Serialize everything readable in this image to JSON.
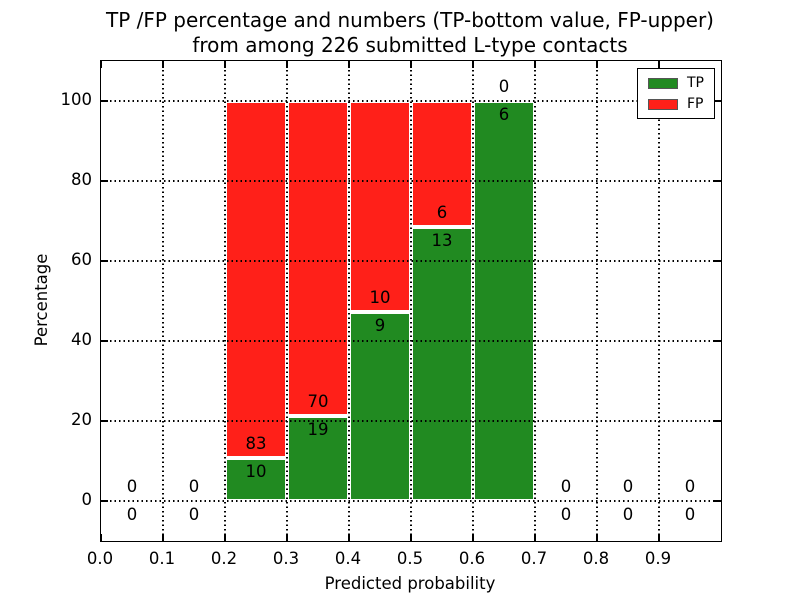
{
  "title": {
    "line1": "TP /FP percentage and numbers (TP-bottom value, FP-upper)",
    "line2": "from among 226 submitted L-type contacts"
  },
  "chart_data": {
    "type": "bar",
    "subtype": "stacked-percentage-histogram",
    "title": "TP /FP percentage and numbers (TP-bottom value, FP-upper) from among 226 submitted L-type contacts",
    "xlabel": "Predicted probability",
    "ylabel": "Percentage",
    "xlim": [
      0.0,
      1.0
    ],
    "ylim": [
      -10,
      110
    ],
    "x_ticks": [
      0.0,
      0.1,
      0.2,
      0.3,
      0.4,
      0.5,
      0.6,
      0.7,
      0.8,
      0.9
    ],
    "y_ticks": [
      0,
      20,
      40,
      60,
      80,
      100
    ],
    "grid": "dotted black, drawn over bars",
    "total_contacts": 226,
    "legend": {
      "position": "upper right",
      "entries": [
        {
          "id": "tp",
          "label": "TP",
          "color": "#218a21"
        },
        {
          "id": "fp",
          "label": "FP",
          "color": "#ff2019"
        }
      ]
    },
    "bins": [
      {
        "x_start": 0.0,
        "x_end": 0.1,
        "tp_count": 0,
        "fp_count": 0,
        "tp_pct": 0,
        "fp_pct": 0
      },
      {
        "x_start": 0.1,
        "x_end": 0.2,
        "tp_count": 0,
        "fp_count": 0,
        "tp_pct": 0,
        "fp_pct": 0
      },
      {
        "x_start": 0.2,
        "x_end": 0.3,
        "tp_count": 10,
        "fp_count": 83,
        "tp_pct": 10.75,
        "fp_pct": 89.25
      },
      {
        "x_start": 0.3,
        "x_end": 0.4,
        "tp_count": 19,
        "fp_count": 70,
        "tp_pct": 21.35,
        "fp_pct": 78.65
      },
      {
        "x_start": 0.4,
        "x_end": 0.5,
        "tp_count": 9,
        "fp_count": 10,
        "tp_pct": 47.37,
        "fp_pct": 52.63
      },
      {
        "x_start": 0.5,
        "x_end": 0.6,
        "tp_count": 13,
        "fp_count": 6,
        "tp_pct": 68.42,
        "fp_pct": 31.58
      },
      {
        "x_start": 0.6,
        "x_end": 0.7,
        "tp_count": 6,
        "fp_count": 0,
        "tp_pct": 100,
        "fp_pct": 0
      },
      {
        "x_start": 0.7,
        "x_end": 0.8,
        "tp_count": 0,
        "fp_count": 0,
        "tp_pct": 0,
        "fp_pct": 0
      },
      {
        "x_start": 0.8,
        "x_end": 0.9,
        "tp_count": 0,
        "fp_count": 0,
        "tp_pct": 0,
        "fp_pct": 0
      },
      {
        "x_start": 0.9,
        "x_end": 1.0,
        "tp_count": 0,
        "fp_count": 0,
        "tp_pct": 0,
        "fp_pct": 0
      }
    ]
  }
}
